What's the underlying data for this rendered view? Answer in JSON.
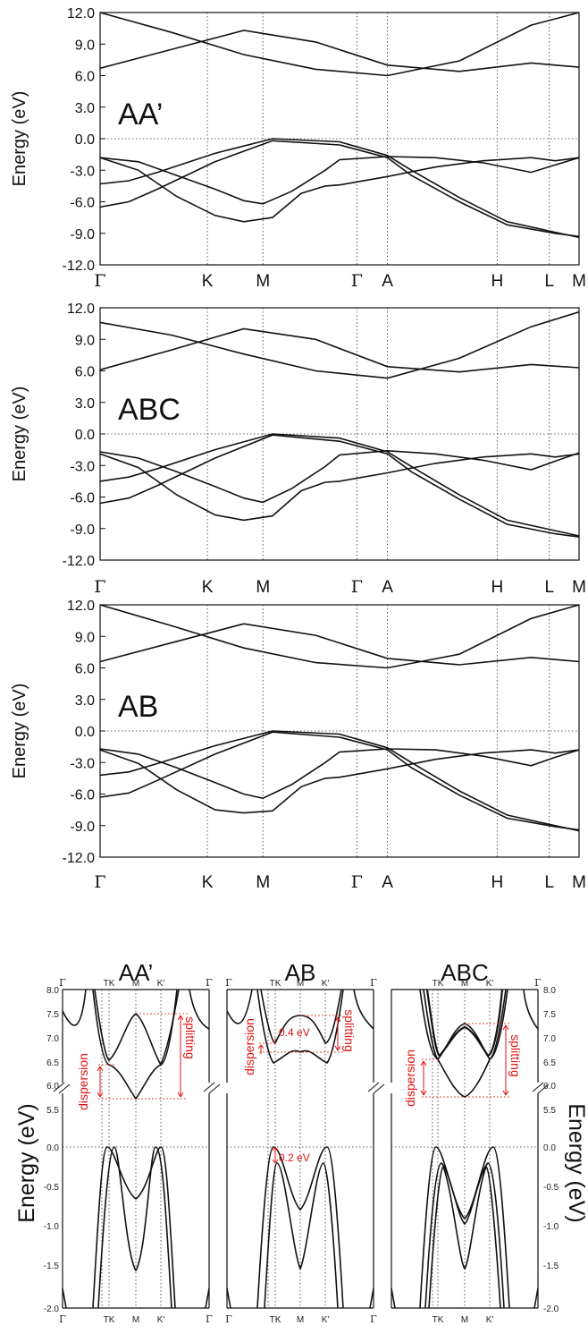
{
  "chart_data": [
    {
      "type": "line",
      "panel_label": "AA’",
      "ylabel": "Energy (eV)",
      "ylim": [
        -12,
        12
      ],
      "yticks": [
        "12.0",
        "9.0",
        "6.0",
        "3.0",
        "0.0",
        "-3.0",
        "-6.0",
        "-9.0",
        "-12.0"
      ],
      "kpoints": [
        "Γ",
        "K",
        "M",
        "Γ",
        "A",
        "H",
        "L",
        "M"
      ],
      "series": [
        {
          "x": [
            0,
            0.08,
            0.16,
            0.24,
            0.3,
            0.34,
            0.4,
            0.47,
            0.5,
            0.6,
            0.7,
            0.8,
            0.9,
            0.95,
            1
          ],
          "values": [
            -1.8,
            -2.2,
            -3.5,
            -4.8,
            -5.9,
            -6.2,
            -5.0,
            -3.0,
            -2.0,
            -1.7,
            -1.8,
            -2.3,
            -3.2,
            -2.5,
            -1.8
          ]
        },
        {
          "x": [
            0,
            0.08,
            0.16,
            0.24,
            0.3,
            0.36,
            0.42,
            0.47,
            0.5,
            0.6,
            0.7,
            0.8,
            0.9,
            0.95,
            1
          ],
          "values": [
            -1.8,
            -3.0,
            -5.5,
            -7.3,
            -7.9,
            -7.5,
            -5.2,
            -4.5,
            -4.4,
            -3.6,
            -2.7,
            -2.1,
            -1.8,
            -2.1,
            -1.8
          ]
        },
        {
          "x": [
            0,
            0.06,
            0.12,
            0.24,
            0.36,
            0.5,
            0.6,
            0.65,
            0.75,
            0.85,
            0.95,
            1
          ],
          "values": [
            -6.5,
            -6.0,
            -4.8,
            -2.2,
            -0.2,
            -0.6,
            -1.8,
            -3.5,
            -6.0,
            -8.2,
            -9.0,
            -9.3
          ]
        },
        {
          "x": [
            0,
            0.06,
            0.12,
            0.24,
            0.36,
            0.5,
            0.6,
            0.65,
            0.75,
            0.85,
            0.95,
            1
          ],
          "values": [
            -4.3,
            -4.0,
            -3.2,
            -1.4,
            0.0,
            -0.3,
            -1.6,
            -3.0,
            -5.6,
            -7.9,
            -8.9,
            -9.4
          ]
        },
        {
          "x": [
            0,
            0.15,
            0.3,
            0.45,
            0.6,
            0.75,
            0.9,
            1
          ],
          "values": [
            6.7,
            8.5,
            10.3,
            9.2,
            7.0,
            6.4,
            7.2,
            6.8
          ]
        },
        {
          "x": [
            0,
            0.15,
            0.3,
            0.45,
            0.6,
            0.75,
            0.9,
            1
          ],
          "values": [
            12.0,
            10.1,
            8.0,
            6.6,
            6.0,
            7.4,
            10.8,
            12.0
          ]
        }
      ]
    },
    {
      "type": "line",
      "panel_label": "ABC",
      "ylabel": "Energy (eV)",
      "ylim": [
        -12,
        12
      ],
      "yticks": [
        "12.0",
        "9.0",
        "6.0",
        "3.0",
        "0.0",
        "-3.0",
        "-6.0",
        "-9.0",
        "-12.0"
      ],
      "kpoints": [
        "Γ",
        "K",
        "M",
        "Γ",
        "A",
        "H",
        "L",
        "M"
      ],
      "series": [
        {
          "x": [
            0,
            0.08,
            0.16,
            0.24,
            0.3,
            0.34,
            0.4,
            0.47,
            0.5,
            0.6,
            0.7,
            0.8,
            0.9,
            0.95,
            1
          ],
          "values": [
            -1.7,
            -2.3,
            -3.6,
            -5.0,
            -6.1,
            -6.5,
            -5.2,
            -3.1,
            -2.0,
            -1.6,
            -1.9,
            -2.5,
            -3.4,
            -2.6,
            -1.8
          ]
        },
        {
          "x": [
            0,
            0.08,
            0.16,
            0.24,
            0.3,
            0.36,
            0.42,
            0.47,
            0.5,
            0.6,
            0.7,
            0.8,
            0.9,
            0.95,
            1
          ],
          "values": [
            -1.9,
            -3.2,
            -5.8,
            -7.7,
            -8.2,
            -7.8,
            -5.4,
            -4.6,
            -4.5,
            -3.7,
            -2.8,
            -2.2,
            -1.9,
            -2.2,
            -1.9
          ]
        },
        {
          "x": [
            0,
            0.06,
            0.12,
            0.24,
            0.36,
            0.5,
            0.6,
            0.65,
            0.75,
            0.85,
            0.95,
            1
          ],
          "values": [
            -6.6,
            -6.1,
            -4.9,
            -2.3,
            -0.1,
            -0.7,
            -1.9,
            -3.6,
            -6.2,
            -8.6,
            -9.5,
            -9.8
          ]
        },
        {
          "x": [
            0,
            0.06,
            0.12,
            0.24,
            0.36,
            0.5,
            0.6,
            0.65,
            0.75,
            0.85,
            0.95,
            1
          ],
          "values": [
            -4.5,
            -4.1,
            -3.3,
            -1.5,
            0.0,
            -0.4,
            -1.7,
            -3.1,
            -5.8,
            -8.2,
            -9.2,
            -9.7
          ]
        },
        {
          "x": [
            0,
            0.15,
            0.3,
            0.45,
            0.6,
            0.75,
            0.9,
            1
          ],
          "values": [
            6.1,
            8.0,
            10.0,
            9.0,
            6.4,
            5.9,
            6.6,
            6.3
          ]
        },
        {
          "x": [
            0,
            0.15,
            0.3,
            0.45,
            0.6,
            0.75,
            0.9,
            1
          ],
          "values": [
            10.6,
            9.4,
            7.6,
            6.0,
            5.3,
            7.2,
            10.2,
            11.6
          ]
        }
      ]
    },
    {
      "type": "line",
      "panel_label": "AB",
      "ylabel": "Energy (eV)",
      "ylim": [
        -12,
        12
      ],
      "yticks": [
        "12.0",
        "9.0",
        "6.0",
        "3.0",
        "0.0",
        "-3.0",
        "-6.0",
        "-9.0",
        "-12.0"
      ],
      "kpoints": [
        "Γ",
        "K",
        "M",
        "Γ",
        "A",
        "H",
        "L",
        "M"
      ],
      "series": [
        {
          "x": [
            0,
            0.08,
            0.16,
            0.24,
            0.3,
            0.34,
            0.4,
            0.47,
            0.5,
            0.6,
            0.7,
            0.8,
            0.9,
            0.95,
            1
          ],
          "values": [
            -1.7,
            -2.2,
            -3.5,
            -4.9,
            -6.0,
            -6.4,
            -5.1,
            -3.0,
            -2.0,
            -1.7,
            -1.8,
            -2.4,
            -3.3,
            -2.5,
            -1.8
          ]
        },
        {
          "x": [
            0,
            0.08,
            0.16,
            0.24,
            0.3,
            0.36,
            0.42,
            0.47,
            0.5,
            0.6,
            0.7,
            0.8,
            0.9,
            0.95,
            1
          ],
          "values": [
            -1.8,
            -3.1,
            -5.6,
            -7.5,
            -7.8,
            -7.6,
            -5.3,
            -4.5,
            -4.4,
            -3.6,
            -2.7,
            -2.1,
            -1.8,
            -2.1,
            -1.8
          ]
        },
        {
          "x": [
            0,
            0.06,
            0.12,
            0.24,
            0.36,
            0.5,
            0.6,
            0.65,
            0.75,
            0.85,
            0.95,
            1
          ],
          "values": [
            -6.3,
            -5.9,
            -4.7,
            -2.2,
            -0.1,
            -0.6,
            -1.8,
            -3.5,
            -6.1,
            -8.3,
            -9.1,
            -9.4
          ]
        },
        {
          "x": [
            0,
            0.06,
            0.12,
            0.24,
            0.36,
            0.5,
            0.6,
            0.65,
            0.75,
            0.85,
            0.95,
            1
          ],
          "values": [
            -4.2,
            -3.9,
            -3.1,
            -1.4,
            0.0,
            -0.3,
            -1.6,
            -3.0,
            -5.7,
            -8.0,
            -9.0,
            -9.5
          ]
        },
        {
          "x": [
            0,
            0.15,
            0.3,
            0.45,
            0.6,
            0.75,
            0.9,
            1
          ],
          "values": [
            6.6,
            8.4,
            10.2,
            9.1,
            6.9,
            6.3,
            7.0,
            6.6
          ]
        },
        {
          "x": [
            0,
            0.15,
            0.3,
            0.45,
            0.6,
            0.75,
            0.9,
            1
          ],
          "values": [
            12.0,
            10.0,
            7.9,
            6.5,
            6.0,
            7.3,
            10.7,
            12.0
          ]
        }
      ]
    }
  ],
  "bottom": {
    "ylabel": "Energy (eV)",
    "upper_ticks": [
      "8.0",
      "7.5",
      "7.0",
      "6.5",
      "6.0",
      "5.5"
    ],
    "lower_ticks": [
      "0.0",
      "-0.5",
      "-1.0",
      "-1.5",
      "-2.0"
    ],
    "panels": [
      {
        "title": "AA’",
        "klabels": [
          "Γ",
          "TK",
          "M",
          "K'",
          "Γ"
        ],
        "dispersion_label": "dispersion",
        "splitting_label": "splitting",
        "gap_label": ""
      },
      {
        "title": "AB",
        "klabels": [
          "Γ",
          "TK",
          "M",
          "K'",
          "Γ"
        ],
        "dispersion_label": "dispersion",
        "splitting_label": "splitting",
        "gap_label": "0.4 eV",
        "vb_gap_label": "0.2 eV"
      },
      {
        "title": "ABC",
        "klabels": [
          "TK",
          "M",
          "K'",
          "Γ"
        ],
        "dispersion_label": "dispersion",
        "splitting_label": "splitting",
        "gap_label": ""
      }
    ]
  }
}
